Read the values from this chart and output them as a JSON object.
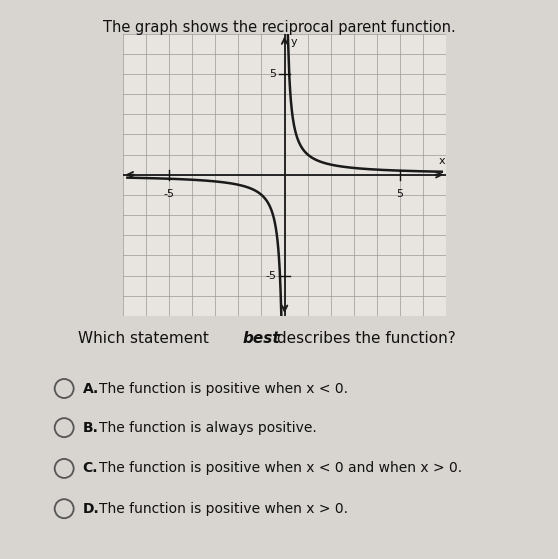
{
  "title": "The graph shows the reciprocal parent function.",
  "title_fontsize": 10.5,
  "title_fontweight": "normal",
  "graph_xlim": [
    -7,
    7
  ],
  "graph_ylim": [
    -7,
    7
  ],
  "axis_ticks": [
    -5,
    5
  ],
  "tick_labels_x": [
    "-5",
    "5"
  ],
  "tick_labels_y": [
    "5",
    "-5"
  ],
  "grid_color": "#999999",
  "grid_linewidth": 0.5,
  "curve_color": "#1a1a1a",
  "curve_linewidth": 1.8,
  "axis_color": "#1a1a1a",
  "background_color": "#d8d4cf",
  "graph_bg_color": "#e8e4df",
  "question_fontsize": 11,
  "option_fontsize": 10,
  "options": [
    {
      "label": "A.",
      "text": "The function is positive when x < 0."
    },
    {
      "label": "B.",
      "text": "The function is always positive."
    },
    {
      "label": "C.",
      "text": "The function is positive when x < 0 and when x > 0."
    },
    {
      "label": "D.",
      "text": "The function is positive when x > 0."
    }
  ]
}
